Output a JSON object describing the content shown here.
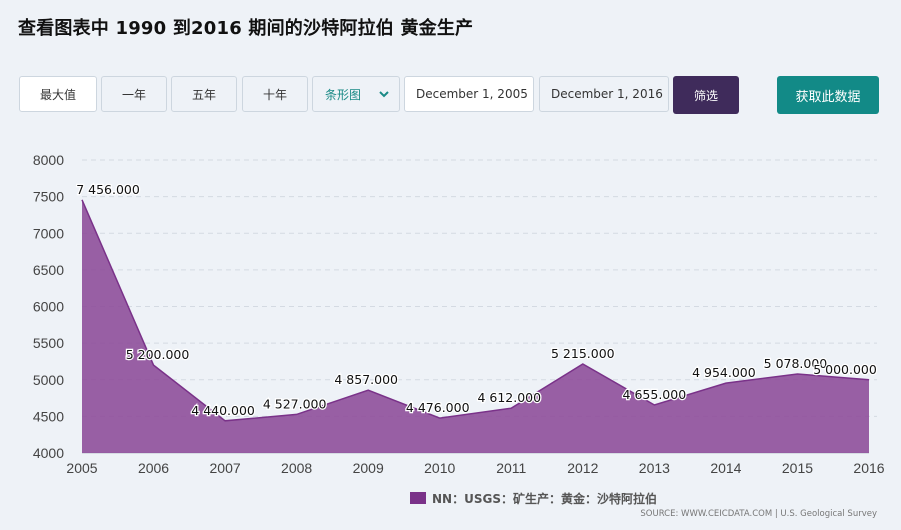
{
  "page_title": "查看图表中 1990 到2016 期间的沙特阿拉伯 黄金生产",
  "toolbar": {
    "range_buttons": [
      "最大值",
      "一年",
      "五年",
      "十年"
    ],
    "chart_type_select": "条形图",
    "start_date": "December 1, 2005",
    "end_date": "December 1, 2016",
    "filter_label": "筛选",
    "get_data_label": "获取此数据"
  },
  "colors": {
    "series": "#8c4a98",
    "series_line": "#7a3289",
    "filter_button": "#3f2b5b",
    "get_data_button": "#128a87",
    "background": "#eef2f7"
  },
  "legend_label": "NN：USGS：矿生产：黄金：沙特阿拉伯",
  "source": "SOURCE: WWW.CEICDATA.COM | U.S. Geological Survey",
  "chart_data": {
    "type": "area",
    "x": [
      2005,
      2006,
      2007,
      2008,
      2009,
      2010,
      2011,
      2012,
      2013,
      2014,
      2015,
      2016
    ],
    "series": [
      {
        "name": "NN：USGS：矿生产：黄金：沙特阿拉伯",
        "values": [
          7456,
          5200,
          4440,
          4527,
          4857,
          4476,
          4612,
          5215,
          4655,
          4954,
          5078,
          5000
        ],
        "labels": [
          "7 456.000",
          "5 200.000",
          "4 440.000",
          "4 527.000",
          "4 857.000",
          "4 476.000",
          "4 612.000",
          "5 215.000",
          "4 655.000",
          "4 954.000",
          "5 078.000",
          "5 000.000"
        ]
      }
    ],
    "ylim": [
      4000,
      8000
    ],
    "yticks": [
      4000,
      4500,
      5000,
      5500,
      6000,
      6500,
      7000,
      7500,
      8000
    ],
    "xticks": [
      "2005",
      "2006",
      "2007",
      "2008",
      "2009",
      "2010",
      "2011",
      "2012",
      "2013",
      "2014",
      "2015",
      "2016"
    ],
    "grid": true,
    "legend_position": "bottom"
  }
}
